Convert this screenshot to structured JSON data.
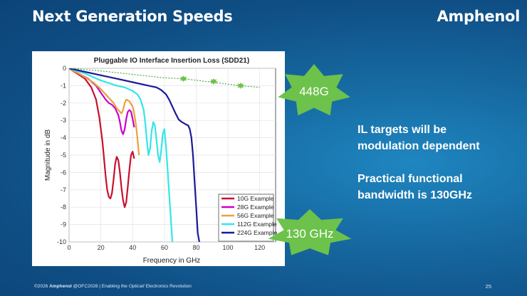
{
  "slide": {
    "title": "Next Generation Speeds",
    "brand": "Amphenol",
    "bullets": [
      "IL targets will be modulation dependent",
      "Practical functional bandwidth is 130GHz"
    ],
    "bullet_lines": [
      [
        "IL targets will be",
        "modulation dependent"
      ],
      [
        "Practical functional",
        "bandwidth is 130GHz"
      ]
    ],
    "footer": {
      "copyright": "©2026",
      "company": "Amphenol",
      "event": "@OFC2026 | Enabling the",
      "optical": "Optical",
      "tagline": "Electronics Revolution"
    },
    "page_number": "25",
    "callouts": [
      {
        "text": "448G",
        "color": "#6cc24a"
      },
      {
        "text": "130 GHz",
        "color": "#6cc24a"
      }
    ]
  },
  "chart_data": {
    "type": "line",
    "title": "Pluggable IO Interface Insertion Loss (SDD21)",
    "xlabel": "Frequency in GHz",
    "ylabel": "Magnitude in dB",
    "xlim": [
      0,
      130
    ],
    "ylim": [
      -10,
      0
    ],
    "x_ticks": [
      "0",
      "20",
      "40",
      "60",
      "80",
      "100",
      "120"
    ],
    "y_ticks": [
      "0",
      "-1",
      "-2",
      "-3",
      "-4",
      "-5",
      "-6",
      "-7",
      "-8",
      "-9",
      "-10"
    ],
    "grid": true,
    "legend_position": "bottom-right",
    "series": [
      {
        "name": "10G Example",
        "color": "#c8102e",
        "points": [
          [
            0,
            0
          ],
          [
            5,
            -0.3
          ],
          [
            10,
            -0.6
          ],
          [
            14,
            -1.1
          ],
          [
            17,
            -1.8
          ],
          [
            19,
            -2.8
          ],
          [
            21,
            -4.2
          ],
          [
            22,
            -5.2
          ],
          [
            23,
            -6.2
          ],
          [
            24,
            -7.0
          ],
          [
            25,
            -7.4
          ],
          [
            26,
            -7.5
          ],
          [
            27,
            -7.2
          ],
          [
            28,
            -6.4
          ],
          [
            29,
            -5.5
          ],
          [
            30,
            -5.1
          ],
          [
            31,
            -5.3
          ],
          [
            32,
            -6.0
          ],
          [
            33,
            -6.9
          ],
          [
            34,
            -7.6
          ],
          [
            35,
            -8.0
          ],
          [
            36,
            -7.7
          ],
          [
            37,
            -6.8
          ],
          [
            38,
            -5.8
          ],
          [
            39,
            -5.0
          ],
          [
            40,
            -4.8
          ],
          [
            41,
            -5.2
          ]
        ]
      },
      {
        "name": "28G Example",
        "color": "#cc00cc",
        "points": [
          [
            0,
            0
          ],
          [
            6,
            -0.3
          ],
          [
            12,
            -0.6
          ],
          [
            17,
            -1.0
          ],
          [
            20,
            -1.4
          ],
          [
            23,
            -1.8
          ],
          [
            25,
            -2.0
          ],
          [
            27,
            -2.1
          ],
          [
            29,
            -2.3
          ],
          [
            31,
            -2.7
          ],
          [
            32,
            -3.1
          ],
          [
            33,
            -3.6
          ],
          [
            34,
            -3.8
          ],
          [
            35,
            -3.5
          ],
          [
            36,
            -2.9
          ],
          [
            37,
            -2.5
          ],
          [
            38,
            -2.4
          ],
          [
            39,
            -2.5
          ],
          [
            40,
            -2.9
          ],
          [
            41,
            -3.4
          ]
        ]
      },
      {
        "name": "56G Example",
        "color": "#e8a33d",
        "points": [
          [
            0,
            0
          ],
          [
            8,
            -0.4
          ],
          [
            15,
            -0.8
          ],
          [
            20,
            -1.2
          ],
          [
            24,
            -1.6
          ],
          [
            28,
            -2.0
          ],
          [
            30,
            -2.3
          ],
          [
            32,
            -2.5
          ],
          [
            33,
            -2.6
          ],
          [
            34,
            -2.4
          ],
          [
            35,
            -2.0
          ],
          [
            36,
            -1.8
          ],
          [
            38,
            -1.9
          ],
          [
            40,
            -2.2
          ],
          [
            41,
            -2.6
          ],
          [
            42,
            -3.2
          ],
          [
            43,
            -4.0
          ],
          [
            44,
            -5.0
          ]
        ]
      },
      {
        "name": "112G Example",
        "color": "#33e6e6",
        "points": [
          [
            0,
            0
          ],
          [
            10,
            -0.3
          ],
          [
            20,
            -0.7
          ],
          [
            30,
            -1.0
          ],
          [
            35,
            -1.1
          ],
          [
            40,
            -1.3
          ],
          [
            43,
            -1.5
          ],
          [
            45,
            -1.8
          ],
          [
            47,
            -2.4
          ],
          [
            48,
            -3.2
          ],
          [
            49,
            -4.2
          ],
          [
            50,
            -5.0
          ],
          [
            51,
            -4.6
          ],
          [
            52,
            -3.6
          ],
          [
            53,
            -3.1
          ],
          [
            54,
            -3.3
          ],
          [
            55,
            -4.1
          ],
          [
            56,
            -5.0
          ],
          [
            57,
            -5.4
          ],
          [
            58,
            -4.7
          ],
          [
            59,
            -3.8
          ],
          [
            60,
            -3.5
          ],
          [
            61,
            -4.5
          ],
          [
            62,
            -5.8
          ],
          [
            63,
            -7.2
          ],
          [
            64,
            -8.6
          ],
          [
            65,
            -10.0
          ]
        ]
      },
      {
        "name": "224G Example",
        "color": "#1a1a99",
        "points": [
          [
            0,
            0
          ],
          [
            10,
            -0.2
          ],
          [
            20,
            -0.4
          ],
          [
            30,
            -0.6
          ],
          [
            40,
            -0.8
          ],
          [
            50,
            -1.0
          ],
          [
            55,
            -1.1
          ],
          [
            58,
            -1.25
          ],
          [
            61,
            -1.5
          ],
          [
            63,
            -1.8
          ],
          [
            65,
            -2.2
          ],
          [
            67,
            -2.6
          ],
          [
            69,
            -2.95
          ],
          [
            71,
            -3.1
          ],
          [
            73,
            -3.2
          ],
          [
            75,
            -3.3
          ],
          [
            76,
            -3.5
          ],
          [
            77,
            -4.0
          ],
          [
            78,
            -5.0
          ],
          [
            79,
            -6.5
          ],
          [
            80,
            -8.0
          ],
          [
            81,
            -9.5
          ],
          [
            82,
            -10.0
          ]
        ]
      },
      {
        "name": "448G",
        "color": "#2e9e2e",
        "dashed": true,
        "points": [
          [
            0,
            0
          ],
          [
            20,
            -0.15
          ],
          [
            40,
            -0.35
          ],
          [
            60,
            -0.55
          ],
          [
            72,
            -0.6
          ],
          [
            90,
            -0.8
          ],
          [
            108,
            -1.0
          ],
          [
            120,
            -1.1
          ]
        ],
        "markers": [
          [
            72,
            -0.6
          ],
          [
            91,
            -0.76
          ],
          [
            108,
            -1.0
          ]
        ]
      }
    ]
  }
}
